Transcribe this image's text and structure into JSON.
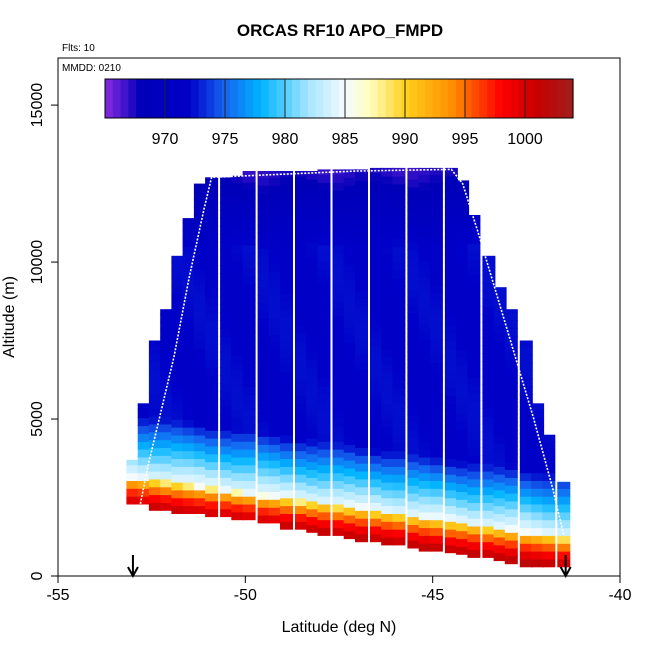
{
  "chart_data": {
    "type": "heatmap",
    "title": "ORCAS RF10 APO_FMPD",
    "annotations": {
      "flights": "Flts: 10",
      "date": "MMDD: 0210"
    },
    "xlabel": "Latitude (deg N)",
    "ylabel": "Altitude (m)",
    "xlim": [
      -55,
      -40
    ],
    "ylim": [
      0,
      16500
    ],
    "x_ticks": [
      -55,
      -50,
      -45,
      -40
    ],
    "x_tick_labels": [
      "-55",
      "-50",
      "-45",
      "-40"
    ],
    "y_ticks": [
      0,
      5000,
      10000,
      15000
    ],
    "y_tick_labels": [
      "0",
      "5000",
      "10000",
      "15000"
    ],
    "colorbar": {
      "range": [
        965,
        1004
      ],
      "ticks": [
        970,
        975,
        980,
        985,
        990,
        995,
        1000
      ],
      "tick_labels": [
        "970",
        "975",
        "980",
        "985",
        "990",
        "995",
        "1000"
      ],
      "stops": [
        {
          "v": 965,
          "color": "#8a2be2"
        },
        {
          "v": 968,
          "color": "#0000b8"
        },
        {
          "v": 972,
          "color": "#0000c8"
        },
        {
          "v": 975,
          "color": "#1565f0"
        },
        {
          "v": 978,
          "color": "#00b4ff"
        },
        {
          "v": 982,
          "color": "#a8e6ff"
        },
        {
          "v": 985,
          "color": "#f4fbff"
        },
        {
          "v": 987,
          "color": "#ffffc0"
        },
        {
          "v": 990,
          "color": "#ffd21e"
        },
        {
          "v": 994,
          "color": "#ff8c00"
        },
        {
          "v": 998,
          "color": "#ff0000"
        },
        {
          "v": 1001,
          "color": "#c80000"
        },
        {
          "v": 1004,
          "color": "#a01e1e"
        }
      ]
    },
    "field": {
      "lat_range": [
        -53.2,
        -41.3
      ],
      "column_count": 36,
      "columns": [
        {
          "lat": -53.0,
          "bottom": 2300,
          "top": 3700
        },
        {
          "lat": -52.7,
          "bottom": 2300,
          "top": 5500
        },
        {
          "lat": -52.4,
          "bottom": 2100,
          "top": 7500
        },
        {
          "lat": -52.1,
          "bottom": 2100,
          "top": 8500
        },
        {
          "lat": -51.8,
          "bottom": 2000,
          "top": 10200
        },
        {
          "lat": -51.5,
          "bottom": 2000,
          "top": 11400
        },
        {
          "lat": -51.2,
          "bottom": 2000,
          "top": 12500
        },
        {
          "lat": -50.9,
          "bottom": 1900,
          "top": 12700
        },
        {
          "lat": -50.5,
          "bottom": 1900,
          "top": 12700
        },
        {
          "lat": -50.2,
          "bottom": 1800,
          "top": 12750
        },
        {
          "lat": -49.9,
          "bottom": 1800,
          "top": 12900
        },
        {
          "lat": -49.5,
          "bottom": 1700,
          "top": 12900
        },
        {
          "lat": -49.2,
          "bottom": 1700,
          "top": 12900
        },
        {
          "lat": -48.9,
          "bottom": 1500,
          "top": 12900
        },
        {
          "lat": -48.5,
          "bottom": 1500,
          "top": 12900
        },
        {
          "lat": -48.2,
          "bottom": 1400,
          "top": 12900
        },
        {
          "lat": -47.9,
          "bottom": 1300,
          "top": 12950
        },
        {
          "lat": -47.5,
          "bottom": 1300,
          "top": 12950
        },
        {
          "lat": -47.2,
          "bottom": 1200,
          "top": 12950
        },
        {
          "lat": -46.9,
          "bottom": 1100,
          "top": 12950
        },
        {
          "lat": -46.5,
          "bottom": 1100,
          "top": 13000
        },
        {
          "lat": -46.2,
          "bottom": 1000,
          "top": 13000
        },
        {
          "lat": -45.9,
          "bottom": 1000,
          "top": 13000
        },
        {
          "lat": -45.5,
          "bottom": 900,
          "top": 13000
        },
        {
          "lat": -45.2,
          "bottom": 800,
          "top": 13000
        },
        {
          "lat": -44.9,
          "bottom": 800,
          "top": 13000
        },
        {
          "lat": -44.5,
          "bottom": 750,
          "top": 13000
        },
        {
          "lat": -44.2,
          "bottom": 700,
          "top": 12600
        },
        {
          "lat": -43.9,
          "bottom": 600,
          "top": 11500
        },
        {
          "lat": -43.5,
          "bottom": 600,
          "top": 10200
        },
        {
          "lat": -43.2,
          "bottom": 500,
          "top": 9200
        },
        {
          "lat": -42.9,
          "bottom": 400,
          "top": 8500
        },
        {
          "lat": -42.5,
          "bottom": 300,
          "top": 7500
        },
        {
          "lat": -42.2,
          "bottom": 300,
          "top": 5500
        },
        {
          "lat": -41.9,
          "bottom": 300,
          "top": 4500
        },
        {
          "lat": -41.5,
          "bottom": 300,
          "top": 3000
        }
      ],
      "value_model": {
        "top_value": 966,
        "mid_value": 972,
        "cloud_value": 985,
        "surface_value": 1002,
        "boundary_south_alt": 3200,
        "boundary_north_alt": 1200
      }
    },
    "flight_track": [
      {
        "lat": -52.8,
        "alt": 2300
      },
      {
        "lat": -52.6,
        "alt": 3500
      },
      {
        "lat": -52.3,
        "alt": 5000
      },
      {
        "lat": -51.9,
        "alt": 7000
      },
      {
        "lat": -51.5,
        "alt": 9500
      },
      {
        "lat": -51.1,
        "alt": 11700
      },
      {
        "lat": -50.9,
        "alt": 12700
      },
      {
        "lat": -49.0,
        "alt": 12800
      },
      {
        "lat": -47.0,
        "alt": 12900
      },
      {
        "lat": -44.5,
        "alt": 12950
      },
      {
        "lat": -44.2,
        "alt": 12500
      },
      {
        "lat": -43.8,
        "alt": 11000
      },
      {
        "lat": -43.3,
        "alt": 9000
      },
      {
        "lat": -42.8,
        "alt": 7000
      },
      {
        "lat": -42.3,
        "alt": 5000
      },
      {
        "lat": -41.8,
        "alt": 2800
      },
      {
        "lat": -41.5,
        "alt": 1300
      }
    ],
    "arrows": [
      {
        "lat": -53.0,
        "label": "takeoff-arrow"
      },
      {
        "lat": -41.45,
        "label": "landing-arrow"
      }
    ]
  }
}
